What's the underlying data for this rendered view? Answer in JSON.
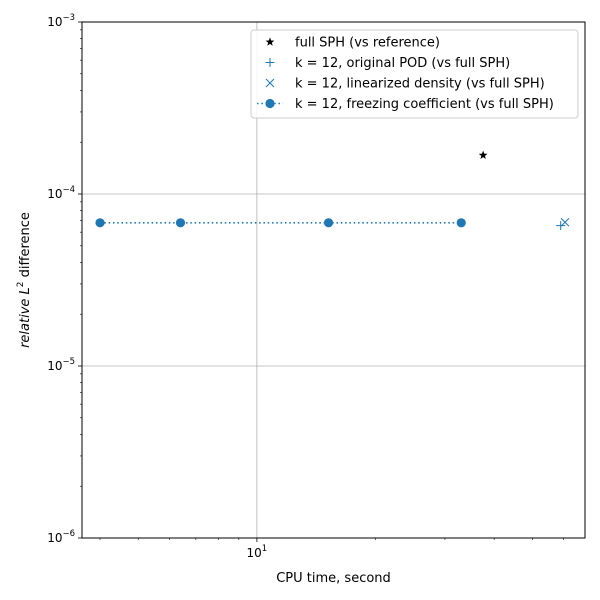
{
  "chart_data": {
    "type": "scatter",
    "xlabel": "CPU time, second",
    "ylabel_main": "relative L",
    "ylabel_sup": "2",
    "ylabel_rest": " difference",
    "xscale": "log",
    "yscale": "log",
    "xlim": [
      3.6,
      68
    ],
    "ylim": [
      1e-06,
      0.001
    ],
    "xticks": [
      {
        "value": 10,
        "base": "10",
        "exp": "1"
      }
    ],
    "yticks": [
      {
        "value": 1e-06,
        "base": "10",
        "exp": "−6"
      },
      {
        "value": 1e-05,
        "base": "10",
        "exp": "−5"
      },
      {
        "value": 0.0001,
        "base": "10",
        "exp": "−4"
      },
      {
        "value": 0.001,
        "base": "10",
        "exp": "−3"
      }
    ],
    "grid": true,
    "legend_position": "top-right",
    "colors": {
      "blue": "#1f77b4",
      "black": "#000000",
      "grid": "#b0b0b0"
    },
    "series": [
      {
        "name": "full SPH (vs reference)",
        "marker": "star",
        "color": "#000000",
        "points": [
          {
            "x": 37.5,
            "y": 0.000168
          }
        ]
      },
      {
        "name": "k = 12, original POD (vs full SPH)",
        "marker": "plus",
        "color": "#1f77b4",
        "points": [
          {
            "x": 59.0,
            "y": 6.55e-05
          }
        ]
      },
      {
        "name": "k = 12, linearized density (vs full SPH)",
        "marker": "x",
        "color": "#1f77b4",
        "points": [
          {
            "x": 60.5,
            "y": 6.85e-05
          }
        ]
      },
      {
        "name": "k = 12, freezing coefficient (vs full SPH)",
        "marker": "circle-dotted",
        "color": "#1f77b4",
        "points": [
          {
            "x": 4.0,
            "y": 6.8e-05
          },
          {
            "x": 6.4,
            "y": 6.8e-05
          },
          {
            "x": 15.2,
            "y": 6.8e-05
          },
          {
            "x": 33.0,
            "y": 6.8e-05
          }
        ]
      }
    ]
  }
}
